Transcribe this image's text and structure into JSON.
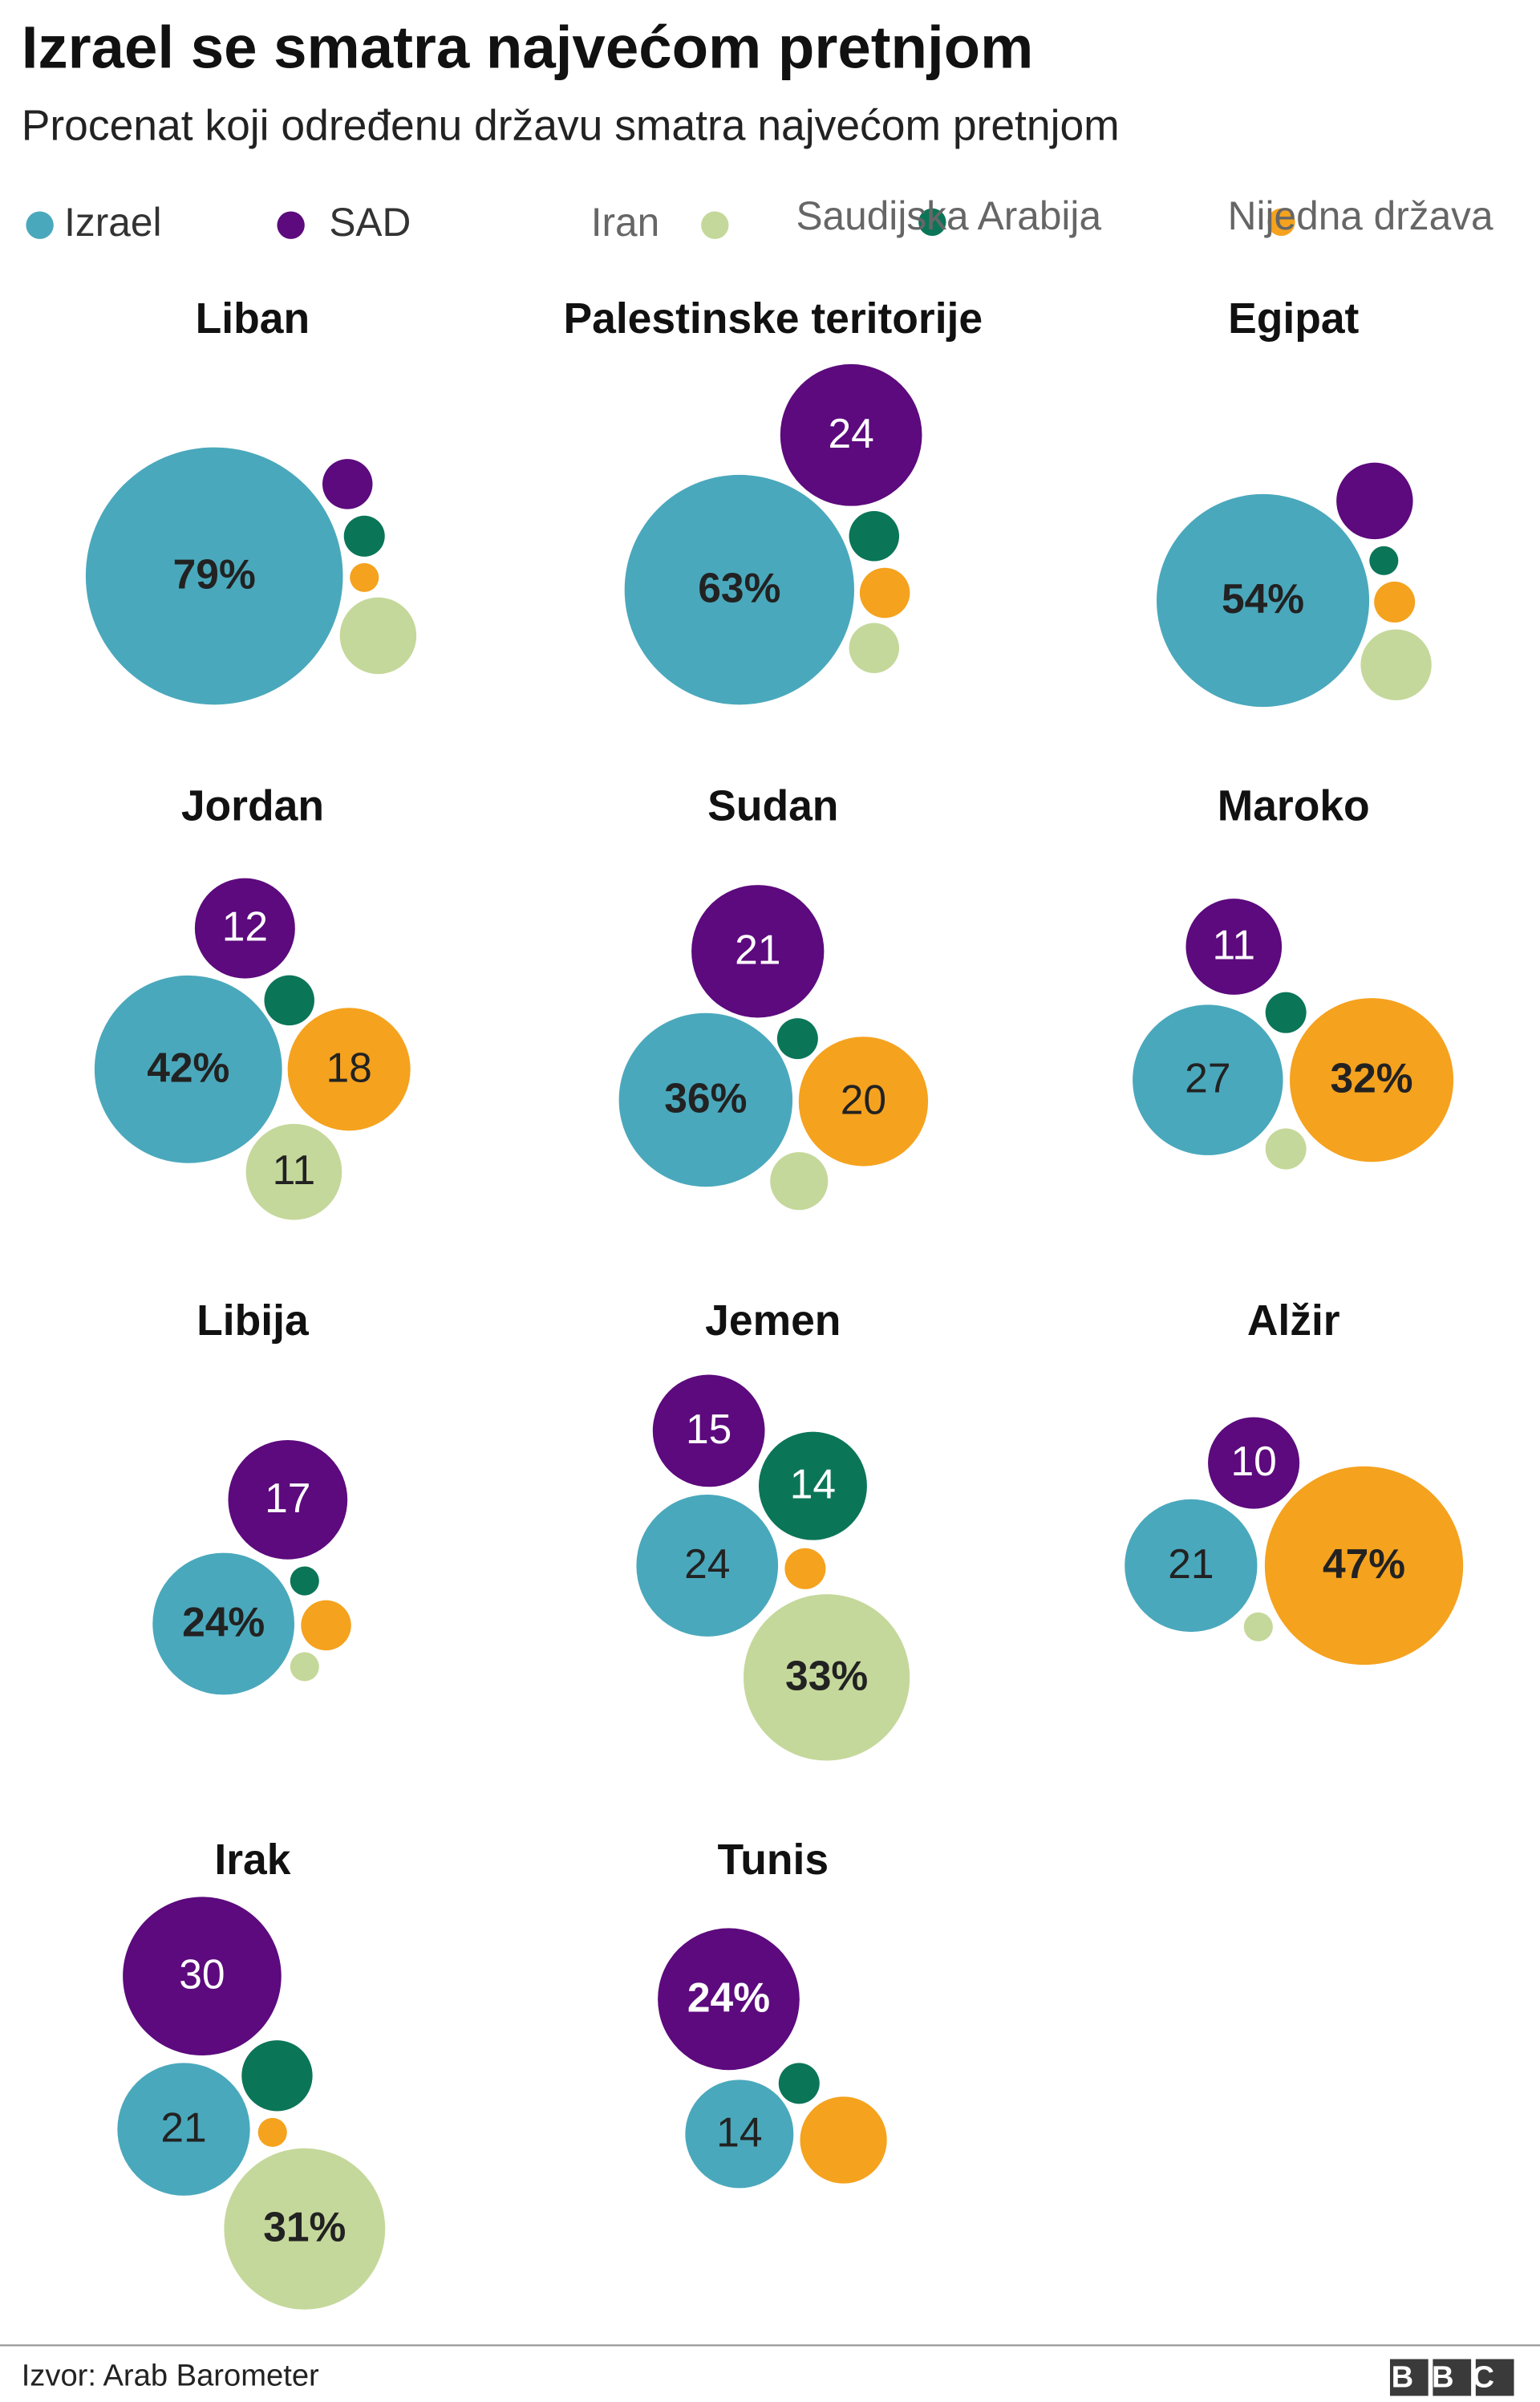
{
  "chart_data": {
    "type": "bubble",
    "title": "Izrael se smatra najvećom pretnjom",
    "subtitle": "Procenat koji određenu državu smatra najvećom pretnjom",
    "series": [
      {
        "name": "Izrael",
        "color": "#4aa8bc",
        "label_color": "#222222"
      },
      {
        "name": "SAD",
        "color": "#5c0a7d",
        "label_color": "#ffffff"
      },
      {
        "name": "Iran",
        "color": "#c5d89b",
        "label_color": "#222222"
      },
      {
        "name": "Saudijska Arabija",
        "color": "#0b7558",
        "label_color": "#ffffff"
      },
      {
        "name": "Nijedna država",
        "color": "#f5a21e",
        "label_color": "#222222"
      }
    ],
    "panels": [
      {
        "title": "Liban",
        "values": [
          79,
          3,
          7,
          2,
          1
        ],
        "value_labels": [
          "79%",
          null,
          null,
          null,
          null
        ]
      },
      {
        "title": "Palestinske teritorije",
        "values": [
          63,
          24,
          3,
          3,
          3
        ],
        "value_labels": [
          "63%",
          "24",
          null,
          null,
          null
        ]
      },
      {
        "title": "Egipat",
        "values": [
          54,
          7,
          6,
          1,
          2
        ],
        "value_labels": [
          "54%",
          null,
          null,
          null,
          null
        ]
      },
      {
        "title": "Jordan",
        "values": [
          42,
          12,
          11,
          3,
          18
        ],
        "value_labels": [
          "42%",
          "12",
          "11",
          null,
          "18"
        ]
      },
      {
        "title": "Sudan",
        "values": [
          36,
          21,
          4,
          2,
          20
        ],
        "value_labels": [
          "36%",
          "21",
          null,
          null,
          "20"
        ]
      },
      {
        "title": "Maroko",
        "values": [
          27,
          11,
          2,
          2,
          32
        ],
        "value_labels": [
          "27",
          "11",
          null,
          null,
          "32%"
        ]
      },
      {
        "title": "Libija",
        "values": [
          24,
          17,
          1,
          1,
          3
        ],
        "value_labels": [
          "24%",
          "17",
          null,
          null,
          null
        ]
      },
      {
        "title": "Jemen",
        "values": [
          24,
          15,
          33,
          14,
          2
        ],
        "value_labels": [
          "24",
          "15",
          "33%",
          "14",
          null
        ]
      },
      {
        "title": "Alžir",
        "values": [
          21,
          10,
          1,
          null,
          47
        ],
        "value_labels": [
          "21",
          "10",
          null,
          null,
          "47%"
        ]
      },
      {
        "title": "Irak",
        "values": [
          21,
          30,
          31,
          6,
          1
        ],
        "value_labels": [
          "21",
          "30",
          "31%",
          null,
          null
        ]
      },
      {
        "title": "Tunis",
        "values": [
          14,
          24,
          null,
          2,
          9
        ],
        "value_labels": [
          "14",
          "24%",
          null,
          null,
          null
        ]
      }
    ],
    "source": "Izvor: Arab Barometer",
    "logo": "BBC"
  }
}
